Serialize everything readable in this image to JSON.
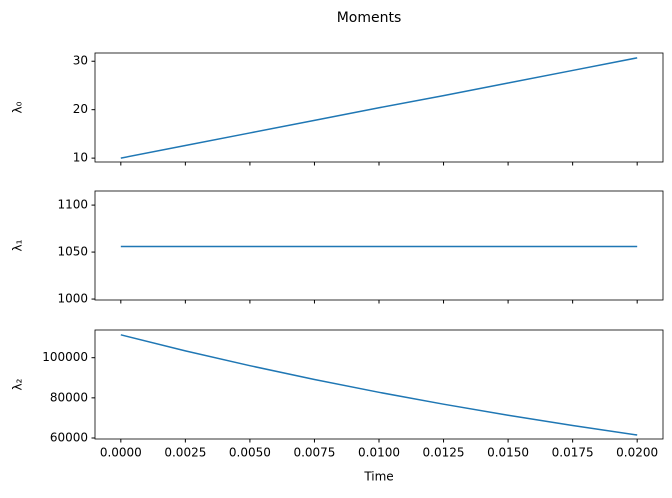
{
  "title": "Moments",
  "chart_data": [
    {
      "type": "line",
      "ylabel": "λ₀",
      "x": [
        0,
        0.0025,
        0.005,
        0.0075,
        0.01,
        0.0125,
        0.015,
        0.0175,
        0.02
      ],
      "series": [
        {
          "color": "#1f77b4",
          "values": [
            10,
            12.6,
            15.2,
            17.8,
            20.4,
            22.9,
            25.5,
            28.1,
            30.7
          ]
        }
      ],
      "xlim": [
        -0.001,
        0.021
      ],
      "xticks": [
        0,
        0.0025,
        0.005,
        0.0075,
        0.01,
        0.0125,
        0.015,
        0.0175,
        0.02
      ],
      "ylim": [
        9.2,
        31.7
      ],
      "yticks": [
        10,
        20,
        30
      ]
    },
    {
      "type": "line",
      "ylabel": "λ₁",
      "x": [
        0,
        0.0025,
        0.005,
        0.0075,
        0.01,
        0.0125,
        0.015,
        0.0175,
        0.02
      ],
      "series": [
        {
          "color": "#1f77b4",
          "values": [
            1056,
            1056,
            1056,
            1056,
            1056,
            1056,
            1056,
            1056,
            1056
          ]
        }
      ],
      "xlim": [
        -0.001,
        0.021
      ],
      "xticks": [
        0,
        0.0025,
        0.005,
        0.0075,
        0.01,
        0.0125,
        0.015,
        0.0175,
        0.02
      ],
      "ylim": [
        999,
        1115
      ],
      "yticks": [
        1000,
        1050,
        1100
      ]
    },
    {
      "type": "line",
      "ylabel": "λ₂",
      "xlabel": "Time",
      "x": [
        0,
        0.0025,
        0.005,
        0.0075,
        0.01,
        0.0125,
        0.015,
        0.0175,
        0.02
      ],
      "series": [
        {
          "color": "#1f77b4",
          "values": [
            111400,
            103420,
            96020,
            89140,
            82760,
            76840,
            71340,
            66230,
            61490
          ]
        }
      ],
      "xlim": [
        -0.001,
        0.021
      ],
      "xticks": [
        {
          "value": 0,
          "label": "0.0000"
        },
        {
          "value": 0.0025,
          "label": "0.0025"
        },
        {
          "value": 0.005,
          "label": "0.0050"
        },
        {
          "value": 0.0075,
          "label": "0.0075"
        },
        {
          "value": 0.01,
          "label": "0.0100"
        },
        {
          "value": 0.0125,
          "label": "0.0125"
        },
        {
          "value": 0.015,
          "label": "0.0150"
        },
        {
          "value": 0.0175,
          "label": "0.0175"
        },
        {
          "value": 0.02,
          "label": "0.0200"
        }
      ],
      "ylim": [
        59500,
        113800
      ],
      "yticks": [
        60000,
        80000,
        100000
      ]
    }
  ]
}
